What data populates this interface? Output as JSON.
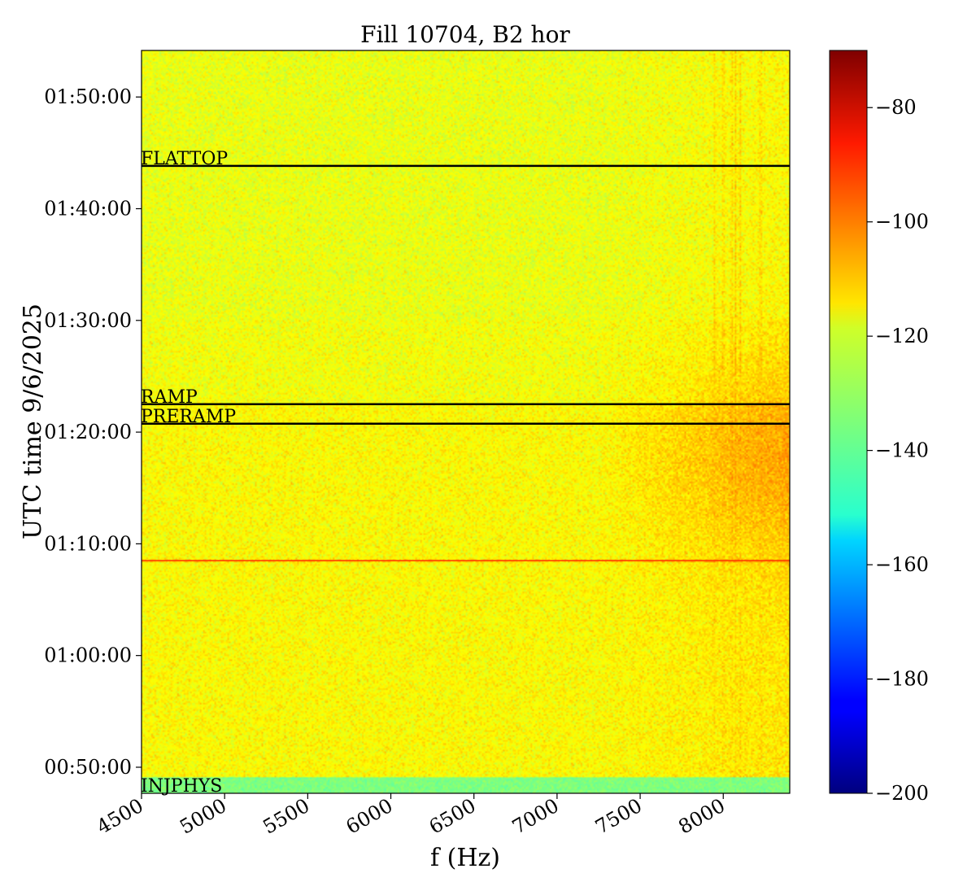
{
  "chart_data": {
    "type": "heatmap",
    "title": "Fill 10704, B2 hor",
    "xlabel": "f (Hz)",
    "ylabel": "UTC time 9/6/2025",
    "x_range_hz": [
      4500,
      8400
    ],
    "x_ticks": [
      4500,
      5000,
      5500,
      6000,
      6500,
      7000,
      7500,
      8000
    ],
    "y_range": [
      "00:47:40",
      "01:54:10"
    ],
    "y_ticks": [
      "00:50:00",
      "01:00:00",
      "01:10:00",
      "01:20:00",
      "01:30:00",
      "01:40:00",
      "01:50:00"
    ],
    "colormap": "jet",
    "colorbar": {
      "min": -200,
      "max": -70,
      "ticks": [
        -80,
        -100,
        -120,
        -140,
        -160,
        -180,
        -200
      ],
      "tick_labels": [
        "−80",
        "−100",
        "−120",
        "−140",
        "−160",
        "−180",
        "−200"
      ]
    },
    "background_level": -120,
    "phases": [
      {
        "label": "FLATTOP",
        "time": "01:43:50"
      },
      {
        "label": "RAMP",
        "time": "01:22:30"
      },
      {
        "label": "PRERAMP",
        "time": "01:20:45"
      },
      {
        "label": "INJPHYS",
        "time": "00:48:30"
      }
    ],
    "marked_time": "01:08:30",
    "injphys_band": {
      "from": "00:47:40",
      "to": "00:49:05",
      "level": -135
    },
    "vertical_lines_hz": [
      7950,
      8000,
      8050,
      8075,
      8100,
      8225
    ],
    "hot_region_hz": [
      7250,
      8400
    ]
  }
}
